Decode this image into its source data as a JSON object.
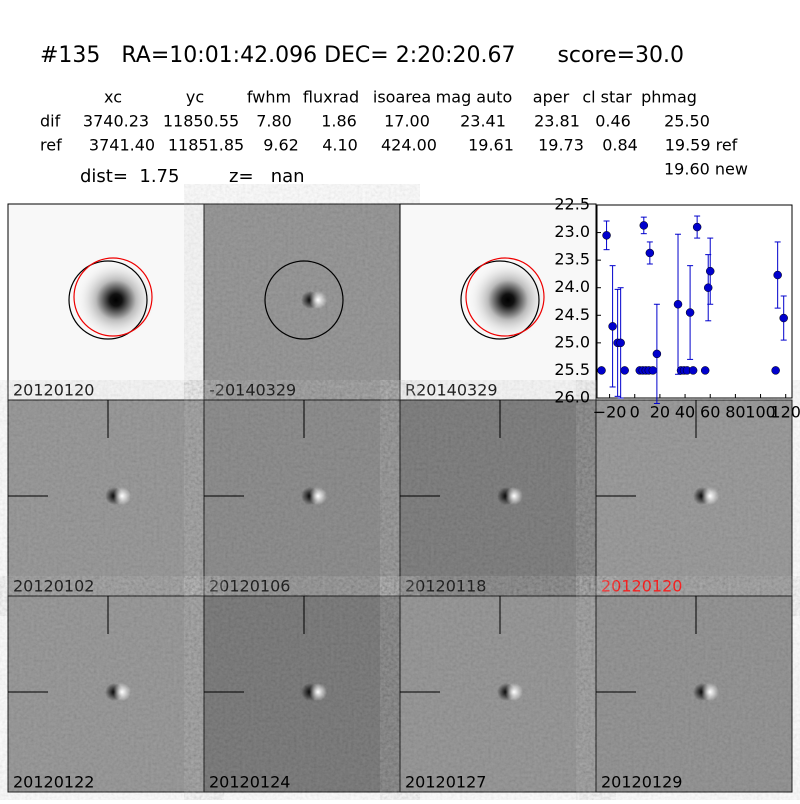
{
  "header": {
    "title": "#135   RA=10:01:42.096 DEC= 2:20:20.67      score=30.0",
    "columns": [
      "xc",
      "yc",
      "fwhm",
      "fluxrad",
      "isoarea",
      "mag auto",
      "aper",
      "cl star",
      "phmag"
    ],
    "rows": [
      {
        "label": "dif",
        "cells": [
          "3740.23",
          "11850.55",
          "7.80",
          "1.86",
          "17.00",
          "23.41",
          "23.81",
          "0.46",
          "25.50"
        ]
      },
      {
        "label": "ref",
        "cells": [
          "3741.40",
          "11851.85",
          "9.62",
          "4.10",
          "424.00",
          "19.61",
          "19.73",
          "0.84",
          "19.59 ref"
        ]
      }
    ],
    "extra": "19.60 new",
    "dist": "dist=  1.75",
    "z": "z=   nan"
  },
  "stamps": [
    {
      "label": "20120120"
    },
    {
      "label": "-20140329"
    },
    {
      "label": "R20140329"
    },
    {
      "label": "20120102"
    },
    {
      "label": "20120106"
    },
    {
      "label": "20120118"
    },
    {
      "label": "20120120"
    },
    {
      "label": "20120122"
    },
    {
      "label": "20120124"
    },
    {
      "label": "20120127"
    },
    {
      "label": "20120129"
    }
  ],
  "chart_data": {
    "type": "scatter",
    "color": "#0000cc",
    "xlim": [
      -30,
      125
    ],
    "xticks": [
      {
        "value": -20,
        "label": "−20"
      },
      0,
      20,
      40,
      60,
      80,
      100,
      120
    ],
    "ylim": [
      26,
      22.5
    ],
    "yticks": [
      22.5,
      {
        "value": 23,
        "label": "23.0"
      },
      23.5,
      {
        "value": 24,
        "label": "24.0"
      },
      24.5,
      {
        "value": 25,
        "label": "25.0"
      },
      25.5,
      {
        "value": 26,
        "label": "26.0"
      }
    ],
    "x": [
      -26.4,
      -22.4,
      -17.6,
      -13.6,
      -11.2,
      -8,
      4,
      6.4,
      7.2,
      8.8,
      11.2,
      12,
      14.4,
      17.6,
      34.4,
      36.8,
      39.2,
      41.6,
      44,
      46.4,
      49.6,
      56,
      58.4,
      60,
      112,
      113.6,
      118.4
    ],
    "values": [
      25.5,
      23.05,
      24.7,
      25.0,
      25.0,
      25.5,
      25.5,
      25.5,
      22.87,
      25.5,
      25.5,
      23.37,
      25.5,
      25.2,
      24.3,
      25.5,
      25.5,
      25.5,
      24.45,
      25.5,
      22.9,
      25.5,
      24.0,
      23.7,
      25.5,
      23.77,
      24.55
    ],
    "errors": [
      null,
      0.26,
      1.1,
      0.97,
      1.0,
      null,
      null,
      null,
      0.15,
      null,
      null,
      0.2,
      null,
      0.9,
      1.27,
      null,
      null,
      null,
      0.85,
      null,
      0.2,
      null,
      0.6,
      0.6,
      null,
      0.6,
      0.4
    ]
  }
}
